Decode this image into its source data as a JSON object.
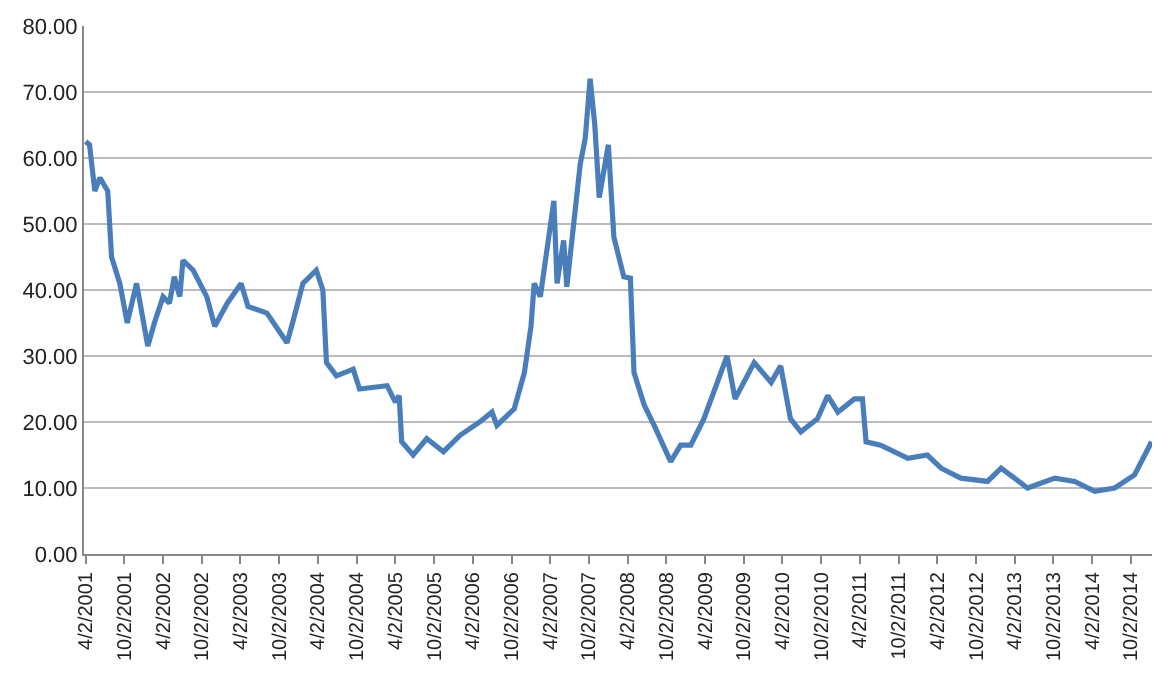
{
  "chart_data": {
    "type": "line",
    "xlim": [
      "2001-03-25",
      "2015-01-10"
    ],
    "ylim": [
      0,
      80
    ],
    "yticks": [
      {
        "value": 0,
        "label": "0.00"
      },
      {
        "value": 10,
        "label": "10.00"
      },
      {
        "value": 20,
        "label": "20.00"
      },
      {
        "value": 30,
        "label": "30.00"
      },
      {
        "value": 40,
        "label": "40.00"
      },
      {
        "value": 50,
        "label": "50.00"
      },
      {
        "value": 60,
        "label": "60.00"
      },
      {
        "value": 70,
        "label": "70.00"
      },
      {
        "value": 80,
        "label": "80.00"
      }
    ],
    "xticks": [
      {
        "value": "2001-04-02",
        "label": "4/2/2001"
      },
      {
        "value": "2001-10-02",
        "label": "10/2/2001"
      },
      {
        "value": "2002-04-02",
        "label": "4/2/2002"
      },
      {
        "value": "2002-10-02",
        "label": "10/2/2002"
      },
      {
        "value": "2003-04-02",
        "label": "4/2/2003"
      },
      {
        "value": "2003-10-02",
        "label": "10/2/2003"
      },
      {
        "value": "2004-04-02",
        "label": "4/2/2004"
      },
      {
        "value": "2004-10-02",
        "label": "10/2/2004"
      },
      {
        "value": "2005-04-02",
        "label": "4/2/2005"
      },
      {
        "value": "2005-10-02",
        "label": "10/2/2005"
      },
      {
        "value": "2006-04-02",
        "label": "4/2/2006"
      },
      {
        "value": "2006-10-02",
        "label": "10/2/2006"
      },
      {
        "value": "2007-04-02",
        "label": "4/2/2007"
      },
      {
        "value": "2007-10-02",
        "label": "10/2/2007"
      },
      {
        "value": "2008-04-02",
        "label": "4/2/2008"
      },
      {
        "value": "2008-10-02",
        "label": "10/2/2008"
      },
      {
        "value": "2009-04-02",
        "label": "4/2/2009"
      },
      {
        "value": "2009-10-02",
        "label": "10/2/2009"
      },
      {
        "value": "2010-04-02",
        "label": "4/2/2010"
      },
      {
        "value": "2010-10-02",
        "label": "10/2/2010"
      },
      {
        "value": "2011-04-02",
        "label": "4/2/2011"
      },
      {
        "value": "2011-10-02",
        "label": "10/2/2011"
      },
      {
        "value": "2012-04-02",
        "label": "4/2/2012"
      },
      {
        "value": "2012-10-02",
        "label": "10/2/2012"
      },
      {
        "value": "2013-04-02",
        "label": "4/2/2013"
      },
      {
        "value": "2013-10-02",
        "label": "10/2/2013"
      },
      {
        "value": "2014-04-02",
        "label": "4/2/2014"
      },
      {
        "value": "2014-10-02",
        "label": "10/2/2014"
      }
    ],
    "x": [
      "2001-04-02",
      "2001-04-20",
      "2001-05-15",
      "2001-06-08",
      "2001-07-15",
      "2001-08-02",
      "2001-09-10",
      "2001-10-15",
      "2001-11-28",
      "2002-01-20",
      "2002-02-20",
      "2002-04-02",
      "2002-05-02",
      "2002-05-25",
      "2002-06-20",
      "2002-07-05",
      "2002-08-22",
      "2002-10-25",
      "2002-12-02",
      "2003-01-30",
      "2003-04-05",
      "2003-05-08",
      "2003-08-05",
      "2003-11-08",
      "2003-12-08",
      "2004-01-22",
      "2004-03-25",
      "2004-04-25",
      "2004-05-12",
      "2004-06-28",
      "2004-09-15",
      "2004-10-15",
      "2005-02-22",
      "2005-04-02",
      "2005-04-20",
      "2005-05-02",
      "2005-06-25",
      "2005-08-28",
      "2005-11-15",
      "2006-02-02",
      "2006-05-05",
      "2006-07-02",
      "2006-07-25",
      "2006-10-15",
      "2006-12-02",
      "2007-01-02",
      "2007-01-17",
      "2007-02-15",
      "2007-04-20",
      "2007-05-05",
      "2007-06-05",
      "2007-06-20",
      "2007-08-22",
      "2007-09-15",
      "2007-10-08",
      "2007-10-30",
      "2007-11-20",
      "2008-01-02",
      "2008-01-28",
      "2008-03-15",
      "2008-04-15",
      "2008-05-02",
      "2008-06-20",
      "2008-08-05",
      "2008-10-22",
      "2008-12-08",
      "2009-01-25",
      "2009-03-28",
      "2009-07-15",
      "2009-08-22",
      "2009-11-20",
      "2010-02-08",
      "2010-03-25",
      "2010-05-10",
      "2010-06-28",
      "2010-09-15",
      "2010-11-02",
      "2010-12-20",
      "2011-03-08",
      "2011-04-15",
      "2011-05-02",
      "2011-07-10",
      "2011-11-15",
      "2012-02-15",
      "2012-04-20",
      "2012-07-22",
      "2012-11-25",
      "2013-01-28",
      "2013-06-02",
      "2013-10-08",
      "2014-01-10",
      "2014-04-15",
      "2014-07-18",
      "2014-10-20",
      "2015-01-08"
    ],
    "series": [
      {
        "color": "#4a7ebb",
        "values": [
          62.5,
          62,
          55,
          57,
          55,
          45,
          41,
          35,
          41,
          31.5,
          35,
          39,
          38,
          42,
          39,
          44.5,
          43,
          39,
          34.5,
          38,
          41,
          37.5,
          36.5,
          32,
          35.5,
          41,
          43,
          40,
          29,
          27,
          28,
          25,
          25.5,
          23,
          24,
          17,
          15,
          17.5,
          15.5,
          18,
          20,
          21.5,
          19.5,
          22,
          27.5,
          34.5,
          41,
          39,
          53.5,
          41,
          47.5,
          40.5,
          59,
          63,
          72,
          65,
          54,
          62,
          48,
          42,
          41.8,
          27.5,
          22.5,
          19.5,
          14,
          16.5,
          16.5,
          20.5,
          30,
          23.5,
          29,
          26,
          28.5,
          20.5,
          18.5,
          20.5,
          24,
          21.5,
          23.5,
          23.5,
          17,
          16.5,
          14.5,
          15,
          13,
          11.5,
          11,
          13,
          10,
          11.5,
          11,
          9.5,
          10,
          12,
          17
        ]
      }
    ],
    "grid": "y",
    "line_style": "solid",
    "marker": "none",
    "legend": false
  }
}
